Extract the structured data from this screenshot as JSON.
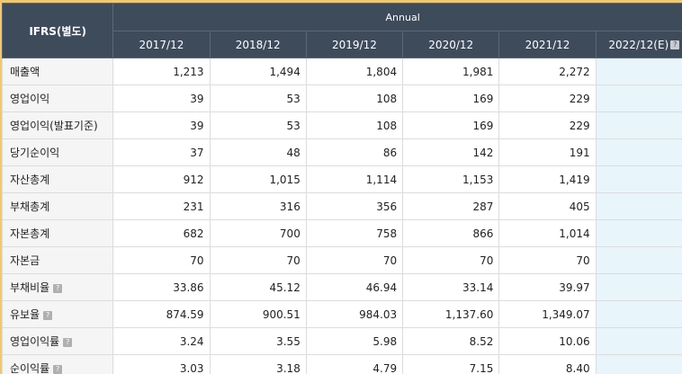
{
  "header": {
    "corner_label": "IFRS(별도)",
    "group_label": "Annual",
    "years": [
      "2017/12",
      "2018/12",
      "2019/12",
      "2020/12",
      "2021/12",
      "2022/12(E)"
    ]
  },
  "help_glyph": "?",
  "rows": [
    {
      "label": "매출액",
      "values": [
        "1,213",
        "1,494",
        "1,804",
        "1,981",
        "2,272",
        ""
      ]
    },
    {
      "label": "영업이익",
      "values": [
        "39",
        "53",
        "108",
        "169",
        "229",
        ""
      ]
    },
    {
      "label": "영업이익(발표기준)",
      "values": [
        "39",
        "53",
        "108",
        "169",
        "229",
        ""
      ]
    },
    {
      "label": "당기순이익",
      "values": [
        "37",
        "48",
        "86",
        "142",
        "191",
        ""
      ]
    },
    {
      "label": "자산총계",
      "values": [
        "912",
        "1,015",
        "1,114",
        "1,153",
        "1,419",
        ""
      ]
    },
    {
      "label": "부채총계",
      "values": [
        "231",
        "316",
        "356",
        "287",
        "405",
        ""
      ]
    },
    {
      "label": "자본총계",
      "values": [
        "682",
        "700",
        "758",
        "866",
        "1,014",
        ""
      ]
    },
    {
      "label": "자본금",
      "values": [
        "70",
        "70",
        "70",
        "70",
        "70",
        ""
      ]
    },
    {
      "label": "부채비율",
      "values": [
        "33.86",
        "45.12",
        "46.94",
        "33.14",
        "39.97",
        ""
      ]
    },
    {
      "label": "유보율",
      "values": [
        "874.59",
        "900.51",
        "984.03",
        "1,137.60",
        "1,349.07",
        ""
      ]
    },
    {
      "label": "영업이익률",
      "values": [
        "3.24",
        "3.55",
        "5.98",
        "8.52",
        "10.06",
        ""
      ]
    },
    {
      "label": "순이익률",
      "values": [
        "3.03",
        "3.18",
        "4.79",
        "7.15",
        "8.40",
        ""
      ]
    }
  ],
  "colors": {
    "header_bg": "#3e4b5b",
    "label_bg": "#f5f5f5",
    "estimate_bg": "#e8f5fb",
    "border_outer": "#f3c86b"
  }
}
